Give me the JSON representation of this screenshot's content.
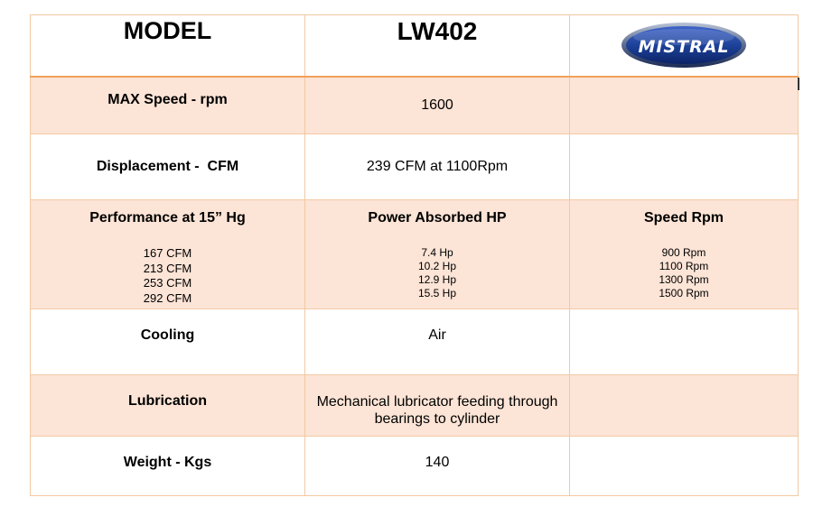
{
  "header": {
    "model_label": "MODEL",
    "model_value": "LW402",
    "logo_text": "MISTRAL"
  },
  "rows": {
    "max_speed": {
      "label": "MAX Speed - rpm",
      "value": "1600"
    },
    "displacement": {
      "label": "Displacement -  CFM",
      "value": "239 CFM at 1100Rpm"
    },
    "performance": {
      "label": "Performance at 15” Hg",
      "power_label": "Power Absorbed HP",
      "speed_label": "Speed Rpm",
      "cfm": [
        "167 CFM",
        "213 CFM",
        "253 CFM",
        "292 CFM"
      ],
      "hp": [
        "7.4 Hp",
        "10.2 Hp",
        "12.9 Hp",
        "15.5 Hp"
      ],
      "rpm": [
        "900 Rpm",
        "1100 Rpm",
        "1300 Rpm",
        "1500 Rpm"
      ]
    },
    "cooling": {
      "label": "Cooling",
      "value": "Air"
    },
    "lubrication": {
      "label": "Lubrication",
      "value_line1": "Mechanical lubricator feeding through",
      "value_line2": "bearings to cylinder"
    },
    "weight": {
      "label": "Weight - Kgs",
      "value": "140"
    }
  },
  "colors": {
    "shade": "#fce4d6",
    "border": "#f3c9a3",
    "header_rule": "#f0a15a",
    "logo_blue": "#1b3f95"
  },
  "icons": {
    "logo": "mistral-logo-icon"
  }
}
